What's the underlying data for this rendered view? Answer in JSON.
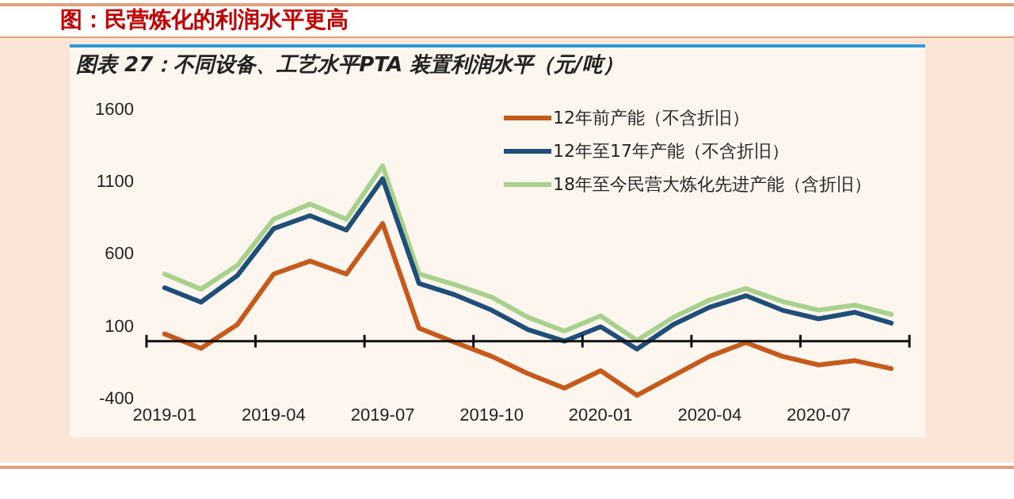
{
  "chart_data": {
    "type": "line",
    "title": "图：民营炼化的利润水平更高",
    "subtitle": "图表 27：不同设备、工艺水平PTA 装置利润水平（元/吨）",
    "categories": [
      "2019-01",
      null,
      null,
      "2019-04",
      null,
      null,
      "2019-07",
      null,
      null,
      "2019-10",
      null,
      null,
      "2020-01",
      null,
      null,
      "2020-04",
      null,
      null,
      "2020-07",
      null,
      null
    ],
    "series": [
      {
        "name": "12年前产能（不含折旧）",
        "color": "#c55a1c",
        "values": [
          50,
          -50,
          115,
          465,
          555,
          465,
          815,
          90,
          -10,
          -105,
          -225,
          -325,
          -205,
          -375,
          -240,
          -105,
          -10,
          -105,
          -165,
          -135,
          -190
        ]
      },
      {
        "name": "12年至17年产能（不含折旧）",
        "color": "#1f4e79",
        "values": [
          370,
          270,
          455,
          780,
          870,
          770,
          1125,
          400,
          320,
          215,
          80,
          0,
          100,
          -55,
          115,
          235,
          315,
          215,
          155,
          200,
          125
        ]
      },
      {
        "name": "18年至今民营大炼化先进产能（含折旧）",
        "color": "#a9d18e",
        "values": [
          465,
          360,
          525,
          845,
          950,
          845,
          1215,
          465,
          390,
          305,
          165,
          70,
          175,
          5,
          165,
          285,
          365,
          275,
          215,
          250,
          185
        ]
      }
    ],
    "ylim": [
      -400,
      1600
    ],
    "yticks": [
      -400,
      100,
      600,
      1100,
      1600
    ],
    "grid": false,
    "legend": "top right",
    "marker": "none",
    "line_style": "solid"
  }
}
